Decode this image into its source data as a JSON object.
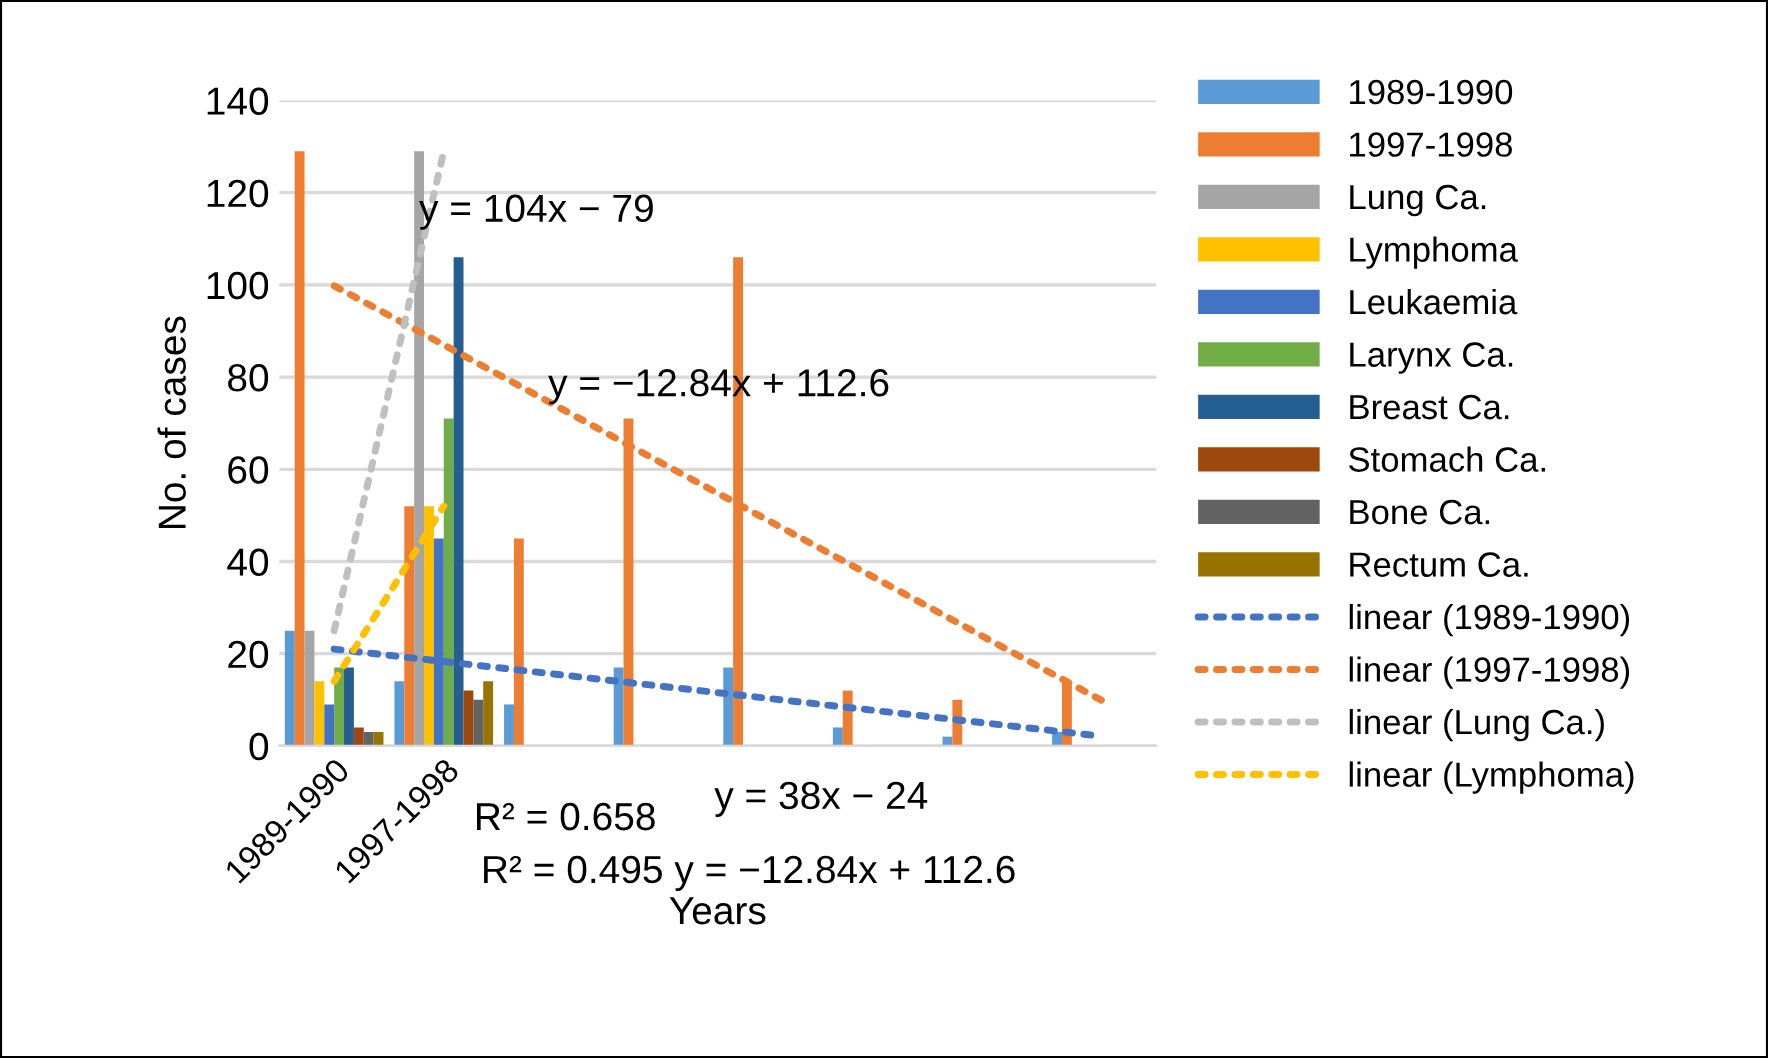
{
  "chart_data": {
    "type": "bar",
    "xlabel": "Years",
    "ylabel": "No. of cases",
    "categories": [
      "1989-1990",
      "1997-1998",
      null,
      null,
      null,
      null,
      null,
      null
    ],
    "series": [
      {
        "name": "1989-1990",
        "color": "#5b9bd5",
        "values": [
          25,
          14,
          9,
          17,
          17,
          4,
          2,
          3
        ]
      },
      {
        "name": "1997-1998",
        "color": "#ed7d31",
        "values": [
          129,
          52,
          45,
          71,
          106,
          12,
          10,
          14
        ]
      },
      {
        "name": "Lung Ca.",
        "color": "#a5a5a5",
        "values": [
          25,
          129,
          null,
          null,
          null,
          null,
          null,
          null
        ]
      },
      {
        "name": "Lymphoma",
        "color": "#ffc000",
        "values": [
          14,
          52,
          null,
          null,
          null,
          null,
          null,
          null
        ]
      },
      {
        "name": "Leukaemia",
        "color": "#4472c4",
        "values": [
          9,
          45,
          null,
          null,
          null,
          null,
          null,
          null
        ]
      },
      {
        "name": "Larynx Ca.",
        "color": "#70ad47",
        "values": [
          17,
          71,
          null,
          null,
          null,
          null,
          null,
          null
        ]
      },
      {
        "name": "Breast Ca.",
        "color": "#255e91",
        "values": [
          17,
          106,
          null,
          null,
          null,
          null,
          null,
          null
        ]
      },
      {
        "name": "Stomach Ca.",
        "color": "#9e480e",
        "values": [
          4,
          12,
          null,
          null,
          null,
          null,
          null,
          null
        ]
      },
      {
        "name": "Bone Ca.",
        "color": "#636363",
        "values": [
          3,
          10,
          null,
          null,
          null,
          null,
          null,
          null
        ]
      },
      {
        "name": "Rectum Ca.",
        "color": "#997300",
        "values": [
          3,
          14,
          null,
          null,
          null,
          null,
          null,
          null
        ]
      },
      {
        "name": "linear (1989-1990)",
        "type": "line",
        "line_style": "dotted",
        "color": "#4472c4",
        "values": [
          21,
          18.3,
          15.6,
          12.9,
          10.2,
          7.5,
          4.8,
          2.1
        ]
      },
      {
        "name": "linear (1997-1998)",
        "type": "line",
        "line_style": "dotted",
        "color": "#ed7d31",
        "values": [
          99.8,
          87,
          74.1,
          61.2,
          48.4,
          35.6,
          22.7,
          9.9
        ]
      },
      {
        "name": "linear (Lung Ca.)",
        "type": "line",
        "line_style": "dotted",
        "color": "#bfbfbf",
        "values": [
          25,
          129,
          null,
          null,
          null,
          null,
          null,
          null
        ]
      },
      {
        "name": "linear (Lymphoma)",
        "type": "line",
        "line_style": "dotted",
        "color": "#ffc000",
        "values": [
          14,
          52,
          null,
          null,
          null,
          null,
          null,
          null
        ]
      }
    ],
    "annotations": [
      "y = 104x − 79",
      "y = −12.84x + 112.6",
      "R² = 0.658",
      "y = 38x − 24",
      "R² = 0.495 y = −12.84x + 112.6"
    ],
    "ylim": [
      0,
      140
    ],
    "yticks": [
      0,
      20,
      40,
      60,
      80,
      100,
      120,
      140
    ],
    "grid": "y",
    "legend": "right"
  }
}
